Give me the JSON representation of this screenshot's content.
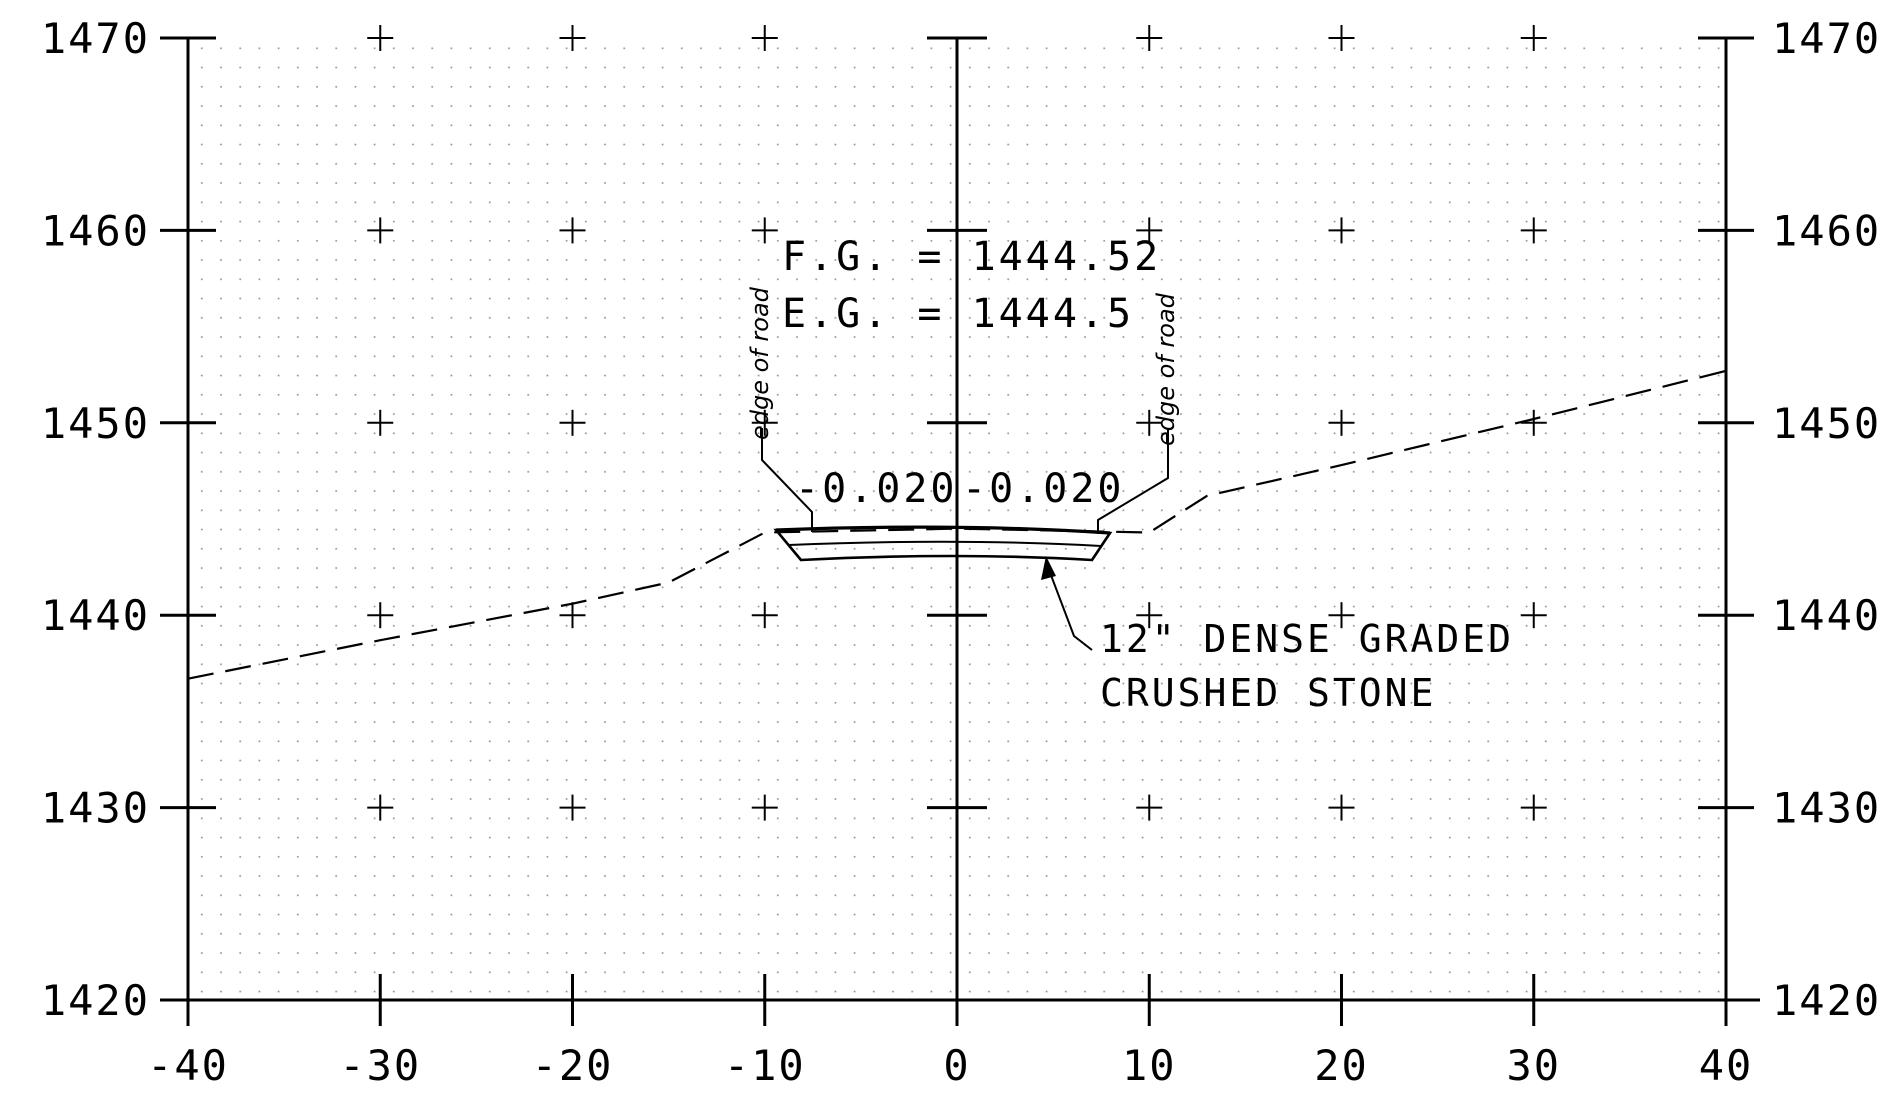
{
  "section": {
    "y_axis_left_labels": [
      "1470",
      "1460",
      "1450",
      "1440",
      "1430",
      "1420"
    ],
    "y_axis_right_labels": [
      "1470",
      "1460",
      "1450",
      "1440",
      "1430",
      "1420"
    ],
    "x_axis_labels": [
      "-40",
      "-30",
      "-20",
      "-10",
      "0",
      "10",
      "20",
      "30",
      "40"
    ],
    "finished_grade_label": "F.G. = 1444.52",
    "existing_grade_label": "E.G. = 1444.5",
    "edge_of_road_left": "edge of road",
    "edge_of_road_right": "edge of road",
    "slope_left": "-0.020",
    "slope_right": "-0.020",
    "material_line1": "12\" DENSE GRADED",
    "material_line2": "CRUSHED STONE"
  },
  "chart_data": {
    "type": "diagram",
    "x_range": [
      -40,
      40
    ],
    "y_range": [
      1420,
      1470
    ],
    "x_ticks": [
      -40,
      -30,
      -20,
      -10,
      0,
      10,
      20,
      30,
      40
    ],
    "y_ticks": [
      1420,
      1430,
      1440,
      1450,
      1460,
      1470
    ],
    "existing_ground": {
      "x": [
        -40,
        -30,
        -20,
        -15,
        -10,
        0,
        10,
        13,
        20,
        30,
        40
      ],
      "y": [
        1436.7,
        1438.7,
        1440.6,
        1441.7,
        1444.3,
        1444.5,
        1444.3,
        1446.2,
        1447.8,
        1450.2,
        1452.7
      ]
    },
    "finished_grade": {
      "x": [
        -10,
        0,
        8
      ],
      "y": [
        1444.3,
        1444.52,
        1444.3
      ]
    },
    "subgrade": {
      "x": [
        -8.5,
        0,
        7
      ],
      "y": [
        1442.8,
        1443.0,
        1442.8
      ]
    },
    "centerline_x": 0
  }
}
